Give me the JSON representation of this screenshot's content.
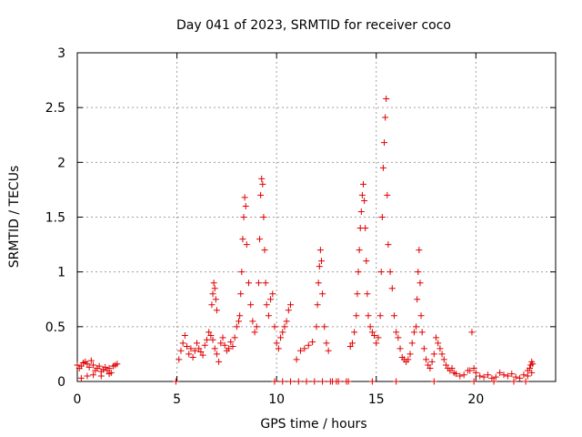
{
  "chart_data": {
    "type": "scatter",
    "title": "Day 041 of 2023, SRMTID for receiver coco",
    "xlabel": "GPS time / hours",
    "ylabel": "SRMTID / TECUs",
    "xlim": [
      0,
      24
    ],
    "ylim": [
      0,
      3
    ],
    "xticks": [
      0,
      5,
      10,
      15,
      20
    ],
    "yticks": [
      0,
      0.5,
      1,
      1.5,
      2,
      2.5,
      3
    ],
    "xtick_labels": [
      "0",
      "5",
      "10",
      "15",
      "20"
    ],
    "ytick_labels": [
      "0",
      "0.5",
      "1",
      "1.5",
      "2",
      "2.5",
      "3"
    ],
    "grid": true,
    "marker": "plus",
    "color": "#e00000",
    "series": [
      {
        "name": "SRMTID",
        "x": [
          0.0,
          0.1,
          0.2,
          0.3,
          0.4,
          0.5,
          0.6,
          0.7,
          0.8,
          0.9,
          1.0,
          1.1,
          1.2,
          1.3,
          1.4,
          1.5,
          1.6,
          1.7,
          1.8,
          1.9,
          2.0,
          0.2,
          0.5,
          0.8,
          1.2,
          1.6,
          4.95,
          5.1,
          5.2,
          5.3,
          5.4,
          5.5,
          5.6,
          5.7,
          5.8,
          5.9,
          6.0,
          6.1,
          6.2,
          6.3,
          6.4,
          6.5,
          6.6,
          6.7,
          6.8,
          6.9,
          7.0,
          7.1,
          7.2,
          7.3,
          7.4,
          7.5,
          7.6,
          7.7,
          7.8,
          7.9,
          6.75,
          6.8,
          6.85,
          6.9,
          6.95,
          7.0,
          8.0,
          8.1,
          8.15,
          8.2,
          8.25,
          8.3,
          8.35,
          8.4,
          8.45,
          8.5,
          8.6,
          8.7,
          8.8,
          8.9,
          9.0,
          9.1,
          9.15,
          9.2,
          9.25,
          9.3,
          9.35,
          9.4,
          9.45,
          9.5,
          9.6,
          9.7,
          9.8,
          9.9,
          10.0,
          10.1,
          10.2,
          10.3,
          10.4,
          10.5,
          10.6,
          10.7,
          11.0,
          11.2,
          11.4,
          11.6,
          11.8,
          12.0,
          12.05,
          12.1,
          12.15,
          12.2,
          12.25,
          12.3,
          12.4,
          12.5,
          12.6,
          12.8,
          13.0,
          13.7,
          13.8,
          13.9,
          14.0,
          14.05,
          14.1,
          14.15,
          14.2,
          14.25,
          14.3,
          14.35,
          14.4,
          14.45,
          14.5,
          14.55,
          14.6,
          14.7,
          14.8,
          14.9,
          15.0,
          15.1,
          15.2,
          15.25,
          15.3,
          15.35,
          15.4,
          15.45,
          15.5,
          15.55,
          15.6,
          15.7,
          15.8,
          15.9,
          16.0,
          16.1,
          16.2,
          16.3,
          16.4,
          16.5,
          16.6,
          16.7,
          16.8,
          16.9,
          17.0,
          17.05,
          17.1,
          17.15,
          17.2,
          17.25,
          17.3,
          17.4,
          17.5,
          17.6,
          17.7,
          17.8,
          17.9,
          18.0,
          18.1,
          18.2,
          18.3,
          18.4,
          18.5,
          18.6,
          18.7,
          18.8,
          18.9,
          19.0,
          19.2,
          19.4,
          19.6,
          19.8,
          19.7,
          19.9,
          20.0,
          20.2,
          20.4,
          20.6,
          20.8,
          21.0,
          21.2,
          21.4,
          21.6,
          21.8,
          22.0,
          22.2,
          22.4,
          22.6,
          22.8,
          9.9,
          10.3,
          10.7,
          11.1,
          11.5,
          11.9,
          12.3,
          12.7,
          13.1,
          13.5,
          13.6,
          14.8,
          16.0,
          17.9,
          19.9,
          20.9,
          21.9,
          22.5,
          22.6,
          22.7,
          22.75,
          22.8,
          22.85
        ],
        "y": [
          0.15,
          0.12,
          0.14,
          0.17,
          0.18,
          0.16,
          0.13,
          0.19,
          0.15,
          0.1,
          0.12,
          0.14,
          0.09,
          0.11,
          0.13,
          0.1,
          0.12,
          0.08,
          0.14,
          0.15,
          0.16,
          0.03,
          0.05,
          0.06,
          0.05,
          0.07,
          0.0,
          0.2,
          0.28,
          0.35,
          0.42,
          0.32,
          0.25,
          0.3,
          0.22,
          0.28,
          0.35,
          0.3,
          0.27,
          0.24,
          0.33,
          0.38,
          0.45,
          0.42,
          0.38,
          0.3,
          0.25,
          0.18,
          0.35,
          0.4,
          0.33,
          0.28,
          0.3,
          0.36,
          0.32,
          0.4,
          0.7,
          0.8,
          0.9,
          0.85,
          0.75,
          0.65,
          0.5,
          0.55,
          0.6,
          0.8,
          1.0,
          1.3,
          1.5,
          1.68,
          1.6,
          1.25,
          0.9,
          0.7,
          0.55,
          0.45,
          0.5,
          0.9,
          1.3,
          1.7,
          1.85,
          1.8,
          1.5,
          1.2,
          0.9,
          0.7,
          0.6,
          0.75,
          0.8,
          0.5,
          0.35,
          0.3,
          0.4,
          0.45,
          0.5,
          0.55,
          0.65,
          0.7,
          0.2,
          0.28,
          0.3,
          0.33,
          0.36,
          0.5,
          0.7,
          0.9,
          1.05,
          1.2,
          1.1,
          0.8,
          0.5,
          0.35,
          0.28,
          0.0,
          0.0,
          0.32,
          0.35,
          0.45,
          0.6,
          0.8,
          1.0,
          1.2,
          1.4,
          1.55,
          1.7,
          1.8,
          1.65,
          1.4,
          1.1,
          0.8,
          0.6,
          0.5,
          0.45,
          0.42,
          0.35,
          0.4,
          0.6,
          1.0,
          1.5,
          1.95,
          2.18,
          2.41,
          2.58,
          1.7,
          1.25,
          1.0,
          0.85,
          0.6,
          0.45,
          0.4,
          0.3,
          0.22,
          0.2,
          0.18,
          0.2,
          0.25,
          0.35,
          0.45,
          0.5,
          0.75,
          1.0,
          1.2,
          0.9,
          0.6,
          0.45,
          0.3,
          0.2,
          0.15,
          0.12,
          0.18,
          0.25,
          0.4,
          0.35,
          0.3,
          0.25,
          0.2,
          0.15,
          0.12,
          0.1,
          0.12,
          0.08,
          0.07,
          0.05,
          0.06,
          0.1,
          0.45,
          0.1,
          0.12,
          0.08,
          0.05,
          0.04,
          0.06,
          0.03,
          0.04,
          0.08,
          0.06,
          0.05,
          0.07,
          0.04,
          0.03,
          0.06,
          0.05,
          0.08,
          0.0,
          0.0,
          0.0,
          0.0,
          0.0,
          0.0,
          0.0,
          0.0,
          0.0,
          0.0,
          0.0,
          0.0,
          0.0,
          0.0,
          0.0,
          0.0,
          0.0,
          0.0,
          0.1,
          0.12,
          0.15,
          0.18,
          0.16
        ]
      }
    ]
  }
}
